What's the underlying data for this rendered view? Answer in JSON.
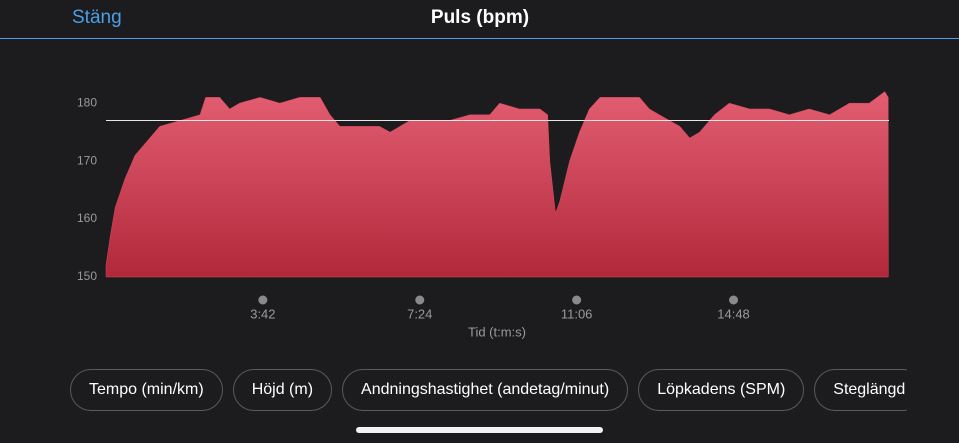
{
  "header": {
    "back": "Stäng",
    "title": "Puls (bpm)"
  },
  "chart_data": {
    "type": "area",
    "color": "#d9465b",
    "x": [
      0,
      6,
      13,
      27,
      41,
      62,
      76,
      105,
      133,
      141,
      161,
      175,
      189,
      218,
      246,
      274,
      303,
      317,
      331,
      359,
      387,
      402,
      430,
      458,
      486,
      515,
      543,
      557,
      585,
      614,
      625,
      628,
      636,
      642,
      656,
      670,
      684,
      699,
      727,
      755,
      769,
      783,
      812,
      826,
      840,
      861,
      882,
      911,
      939,
      967,
      995,
      1024,
      1052,
      1080,
      1102,
      1107
    ],
    "values": [
      152,
      157,
      162,
      167,
      171,
      174,
      176,
      177,
      178,
      181,
      181,
      179,
      180,
      181,
      180,
      181,
      181,
      178,
      176,
      176,
      176,
      175,
      177,
      177,
      177,
      178,
      178,
      180,
      179,
      179,
      178,
      170,
      161,
      163,
      170,
      175,
      179,
      181,
      181,
      181,
      179,
      178,
      176,
      174,
      175,
      178,
      180,
      179,
      179,
      178,
      179,
      178,
      180,
      180,
      182,
      181
    ],
    "reference_line": 177,
    "xlim": [
      0,
      1108
    ],
    "ylim": [
      150,
      184
    ],
    "xticks": [
      {
        "value": 222,
        "label": "3:42"
      },
      {
        "value": 444,
        "label": "7:24"
      },
      {
        "value": 666,
        "label": "11:06"
      },
      {
        "value": 888,
        "label": "14:48"
      }
    ],
    "yticks": [
      150,
      160,
      170,
      180
    ],
    "x_label": "Tid (t:m:s)"
  },
  "buttons": [
    "Tempo (min/km)",
    "Höjd (m)",
    "Andningshastighet (andetag/minut)",
    "Löpkadens (SPM)",
    "Steglängd"
  ]
}
